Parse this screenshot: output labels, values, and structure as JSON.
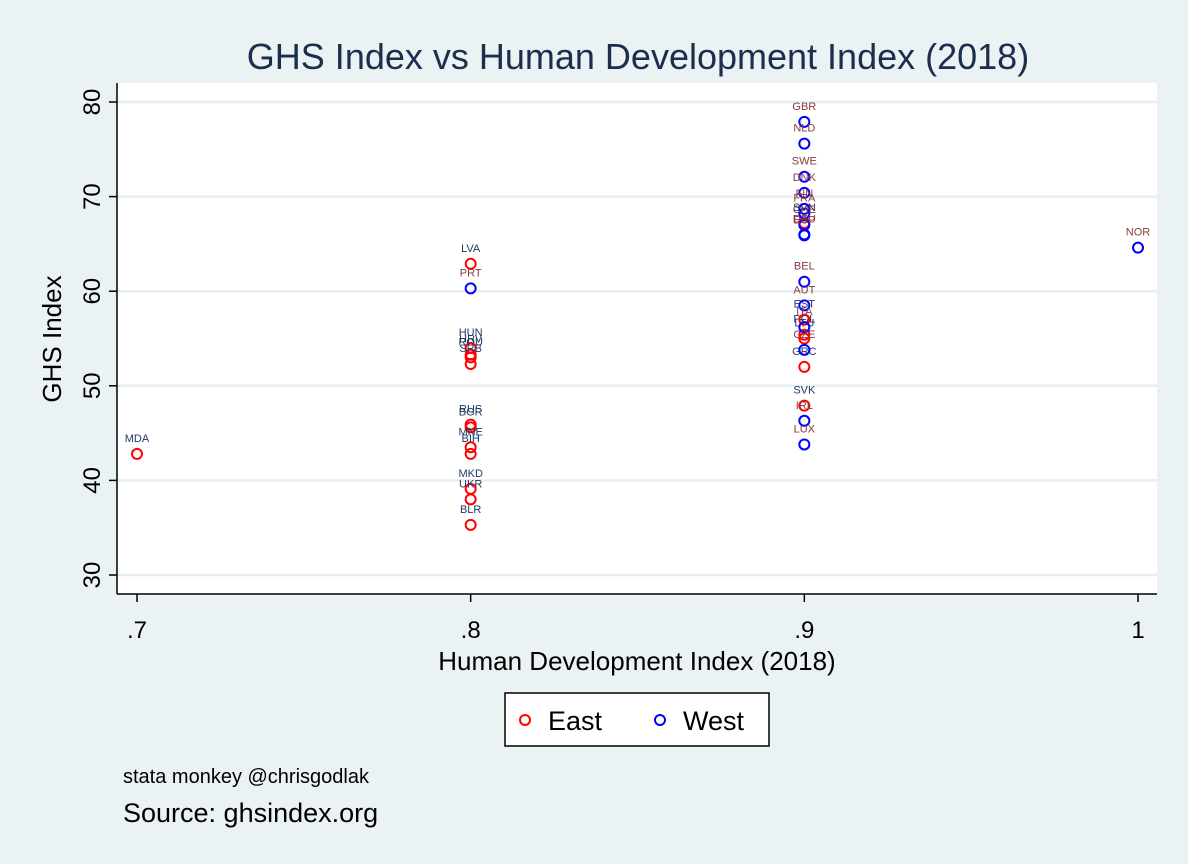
{
  "chart_data": {
    "type": "scatter",
    "title": "GHS Index vs Human Development Index (2018)",
    "xlabel": "Human Development Index (2018)",
    "ylabel": "GHS Index",
    "xlim": [
      0.7,
      1.0
    ],
    "ylim": [
      30,
      80
    ],
    "x_ticks": [
      0.7,
      0.8,
      0.9,
      1.0
    ],
    "x_tick_labels": [
      ".7",
      ".8",
      ".9",
      "1"
    ],
    "y_ticks": [
      30,
      40,
      50,
      60,
      70,
      80
    ],
    "y_tick_labels": [
      "30",
      "40",
      "50",
      "60",
      "70",
      "80"
    ],
    "grid": "horizontal",
    "legend_position": "bottom",
    "note": "stata monkey @chrisgodlak",
    "caption": "Source: ghsindex.org",
    "series": [
      {
        "name": "East",
        "color": "#ff0000",
        "label_color": "#1f3a64",
        "points": [
          {
            "label": "MDA",
            "x": 0.7,
            "y": 42.8
          },
          {
            "label": "LVA",
            "x": 0.8,
            "y": 62.9
          },
          {
            "label": "HUN",
            "x": 0.8,
            "y": 54.0
          },
          {
            "label": "ROU",
            "x": 0.8,
            "y": 53.0
          },
          {
            "label": "HRV",
            "x": 0.8,
            "y": 53.3
          },
          {
            "label": "SRB",
            "x": 0.8,
            "y": 52.3
          },
          {
            "label": "BGR",
            "x": 0.8,
            "y": 45.6
          },
          {
            "label": "RUS",
            "x": 0.8,
            "y": 45.9
          },
          {
            "label": "MNE",
            "x": 0.8,
            "y": 43.5
          },
          {
            "label": "BIH",
            "x": 0.8,
            "y": 42.8
          },
          {
            "label": "MKD",
            "x": 0.8,
            "y": 39.1
          },
          {
            "label": "UKR",
            "x": 0.8,
            "y": 38.0
          },
          {
            "label": "BLR",
            "x": 0.8,
            "y": 35.3
          },
          {
            "label": "SVN",
            "x": 0.9,
            "y": 67.2
          },
          {
            "label": "POL",
            "x": 0.9,
            "y": 55.4
          },
          {
            "label": "LTU",
            "x": 0.9,
            "y": 55.0
          },
          {
            "label": "EST",
            "x": 0.9,
            "y": 57.0
          },
          {
            "label": "GRC",
            "x": 0.9,
            "y": 52.0
          },
          {
            "label": "SVK",
            "x": 0.9,
            "y": 47.9
          }
        ]
      },
      {
        "name": "West",
        "color": "#0000ff",
        "label_color": "#8b3a3a",
        "points": [
          {
            "label": "PRT",
            "x": 0.8,
            "y": 60.3
          },
          {
            "label": "GBR",
            "x": 0.9,
            "y": 77.9
          },
          {
            "label": "NLD",
            "x": 0.9,
            "y": 75.6
          },
          {
            "label": "SWE",
            "x": 0.9,
            "y": 72.1
          },
          {
            "label": "DNK",
            "x": 0.9,
            "y": 70.4
          },
          {
            "label": "FIN",
            "x": 0.9,
            "y": 68.7
          },
          {
            "label": "FRA",
            "x": 0.9,
            "y": 68.2
          },
          {
            "label": "CHE",
            "x": 0.9,
            "y": 67.0
          },
          {
            "label": "DEU",
            "x": 0.9,
            "y": 66.0
          },
          {
            "label": "ESP",
            "x": 0.9,
            "y": 65.9
          },
          {
            "label": "BEL",
            "x": 0.9,
            "y": 61.0
          },
          {
            "label": "AUT",
            "x": 0.9,
            "y": 58.5
          },
          {
            "label": "ITA",
            "x": 0.9,
            "y": 56.2
          },
          {
            "label": "CZE",
            "x": 0.9,
            "y": 53.8
          },
          {
            "label": "IRL",
            "x": 0.9,
            "y": 46.3
          },
          {
            "label": "LUX",
            "x": 0.9,
            "y": 43.8
          },
          {
            "label": "NOR",
            "x": 1.0,
            "y": 64.6
          }
        ]
      }
    ]
  }
}
